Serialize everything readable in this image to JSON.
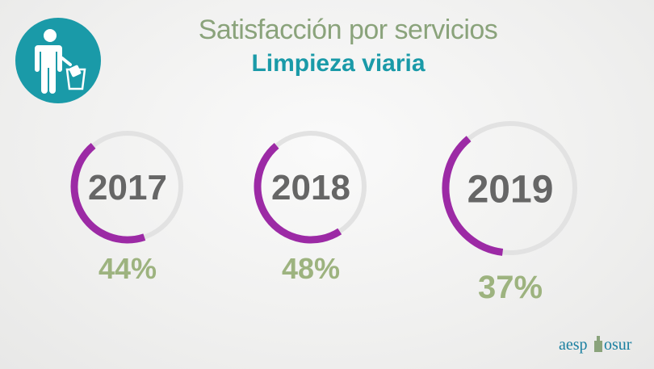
{
  "header": {
    "title": "Satisfacción por servicios",
    "subtitle": "Limpieza viaria",
    "icon": "trash-bin-person-icon"
  },
  "colors": {
    "accent": "#1a9aa8",
    "ring_fill": "#9c2aa5",
    "ring_track": "#e2e2e2",
    "year_text": "#666666",
    "percent_text": "#9db37f",
    "title_text": "#8aa37b"
  },
  "chart_data": {
    "type": "pie",
    "title": "Satisfacción por servicios",
    "subtitle": "Limpieza viaria",
    "categories": [
      "2017",
      "2018",
      "2019"
    ],
    "values": [
      44,
      48,
      37
    ],
    "value_labels": [
      "44%",
      "48%",
      "37%"
    ],
    "unit": "%",
    "max": 100
  },
  "footer": {
    "brand_left": "aesp",
    "brand_right": "osur"
  }
}
